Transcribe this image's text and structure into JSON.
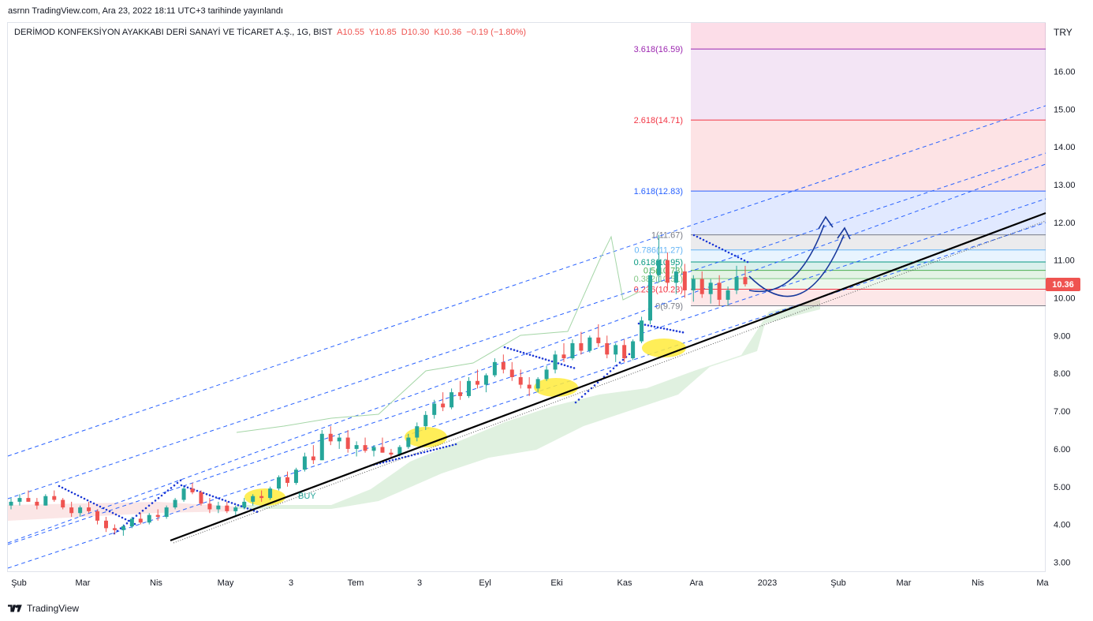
{
  "header": {
    "published_line": "asrnn TradingView.com, Ara 23, 2022 18:11 UTC+3 tarihinde yayınlandı"
  },
  "legend": {
    "symbol": "DERİMOD KONFEKSİYON AYAKKABI DERİ SANAYİ VE TİCARET A.Ş., 1G, BIST",
    "open": "A10.55",
    "high": "Y10.85",
    "low": "D10.30",
    "close": "K10.36",
    "change": "−0.19 (−1.80%)"
  },
  "footer": {
    "brand": "TradingView"
  },
  "colors": {
    "up": "#26a69a",
    "down": "#ef5350",
    "trendline": "#000000",
    "channel": "#2962ff",
    "psar": "#1e3ad6",
    "cloud": "#a5d6a7",
    "highlight": "#ffeb3b",
    "arrow": "#1a3a9c"
  },
  "chart_data": {
    "type": "candlestick",
    "currency": "TRY",
    "last_price": "10.36",
    "ylim": [
      2.7,
      17.5
    ],
    "y_ticks": [
      "3.00",
      "4.00",
      "5.00",
      "6.00",
      "7.00",
      "8.00",
      "9.00",
      "10.00",
      "11.00",
      "12.00",
      "13.00",
      "14.00",
      "15.00",
      "16.00"
    ],
    "x_ticks": [
      "Şub",
      "Mar",
      "Nis",
      "May",
      "3",
      "Tem",
      "3",
      "Eyl",
      "Eki",
      "Kas",
      "Ara",
      "2023",
      "Şub",
      "Mar",
      "Nis",
      "Ma"
    ],
    "buy_label": "BUY",
    "fib_levels": [
      {
        "label": "0(9.79)",
        "ratio": 0,
        "value": 9.79,
        "color": "#787b86"
      },
      {
        "label": "0.236(10.23)",
        "ratio": 0.236,
        "value": 10.23,
        "color": "#f23645"
      },
      {
        "label": "0.382(10.51)",
        "ratio": 0.382,
        "value": 10.51,
        "color": "#81c784"
      },
      {
        "label": "0.5(10.73)",
        "ratio": 0.5,
        "value": 10.73,
        "color": "#4caf50"
      },
      {
        "label": "0.618(10.95)",
        "ratio": 0.618,
        "value": 10.95,
        "color": "#089981"
      },
      {
        "label": "0.786(11.27)",
        "ratio": 0.786,
        "value": 11.27,
        "color": "#64b5f6"
      },
      {
        "label": "1(11.67)",
        "ratio": 1,
        "value": 11.67,
        "color": "#787b86"
      },
      {
        "label": "1.618(12.83)",
        "ratio": 1.618,
        "value": 12.83,
        "color": "#2962ff"
      },
      {
        "label": "2.618(14.71)",
        "ratio": 2.618,
        "value": 14.71,
        "color": "#f23645"
      },
      {
        "label": "3.618(16.59)",
        "ratio": 3.618,
        "value": 16.59,
        "color": "#9c27b0"
      }
    ],
    "fib_band_colors": [
      "rgba(242,54,69,0.12)",
      "rgba(129,199,132,0.15)",
      "rgba(76,175,80,0.15)",
      "rgba(8,153,129,0.15)",
      "rgba(100,181,246,0.15)",
      "rgba(120,123,134,0.15)",
      "rgba(41,98,255,0.14)",
      "rgba(242,54,69,0.14)",
      "rgba(156,39,176,0.12)",
      "rgba(233,30,99,0.15)"
    ],
    "candles_ohlc": [
      [
        4.5,
        4.7,
        4.4,
        4.6
      ],
      [
        4.6,
        4.8,
        4.5,
        4.7
      ],
      [
        4.7,
        4.9,
        4.6,
        4.6
      ],
      [
        4.6,
        4.7,
        4.4,
        4.5
      ],
      [
        4.5,
        4.8,
        4.5,
        4.75
      ],
      [
        4.75,
        4.9,
        4.6,
        4.65
      ],
      [
        4.65,
        4.7,
        4.4,
        4.45
      ],
      [
        4.45,
        4.6,
        4.2,
        4.3
      ],
      [
        4.3,
        4.5,
        4.2,
        4.45
      ],
      [
        4.45,
        4.6,
        4.3,
        4.35
      ],
      [
        4.35,
        4.4,
        4.0,
        4.1
      ],
      [
        4.1,
        4.2,
        3.8,
        3.9
      ],
      [
        3.9,
        4.0,
        3.75,
        3.85
      ],
      [
        3.85,
        4.0,
        3.7,
        3.95
      ],
      [
        3.95,
        4.2,
        3.9,
        4.15
      ],
      [
        4.15,
        4.3,
        4.0,
        4.05
      ],
      [
        4.05,
        4.3,
        4.0,
        4.25
      ],
      [
        4.25,
        4.4,
        4.1,
        4.2
      ],
      [
        4.2,
        4.5,
        4.15,
        4.45
      ],
      [
        4.45,
        4.7,
        4.4,
        4.65
      ],
      [
        4.65,
        5.0,
        4.6,
        4.95
      ],
      [
        4.95,
        5.1,
        4.8,
        4.85
      ],
      [
        4.85,
        4.9,
        4.5,
        4.55
      ],
      [
        4.55,
        4.7,
        4.3,
        4.4
      ],
      [
        4.4,
        4.6,
        4.3,
        4.5
      ],
      [
        4.5,
        4.6,
        4.3,
        4.35
      ],
      [
        4.35,
        4.5,
        4.2,
        4.45
      ],
      [
        4.45,
        4.7,
        4.4,
        4.6
      ],
      [
        4.6,
        4.8,
        4.5,
        4.75
      ],
      [
        4.75,
        4.9,
        4.6,
        4.7
      ],
      [
        4.7,
        5.0,
        4.65,
        4.95
      ],
      [
        4.95,
        5.3,
        4.9,
        5.25
      ],
      [
        5.25,
        5.4,
        5.0,
        5.1
      ],
      [
        5.1,
        5.5,
        5.05,
        5.45
      ],
      [
        5.45,
        5.9,
        5.4,
        5.8
      ],
      [
        5.8,
        6.1,
        5.6,
        5.7
      ],
      [
        5.7,
        6.5,
        5.7,
        6.4
      ],
      [
        6.4,
        6.6,
        6.1,
        6.2
      ],
      [
        6.2,
        6.4,
        6.0,
        6.3
      ],
      [
        6.3,
        6.5,
        5.9,
        6.0
      ],
      [
        6.0,
        6.2,
        5.8,
        6.1
      ],
      [
        6.1,
        6.3,
        5.9,
        5.95
      ],
      [
        5.95,
        6.1,
        5.8,
        6.05
      ],
      [
        6.05,
        6.3,
        5.9,
        5.9
      ],
      [
        5.9,
        6.0,
        5.75,
        5.85
      ],
      [
        5.85,
        6.1,
        5.8,
        6.05
      ],
      [
        6.05,
        6.4,
        6.0,
        6.3
      ],
      [
        6.3,
        6.7,
        6.2,
        6.6
      ],
      [
        6.6,
        7.0,
        6.5,
        6.9
      ],
      [
        6.9,
        7.3,
        6.8,
        7.2
      ],
      [
        7.2,
        7.5,
        7.0,
        7.1
      ],
      [
        7.1,
        7.6,
        7.05,
        7.5
      ],
      [
        7.5,
        7.8,
        7.3,
        7.4
      ],
      [
        7.4,
        7.9,
        7.35,
        7.8
      ],
      [
        7.8,
        8.1,
        7.6,
        7.7
      ],
      [
        7.7,
        8.0,
        7.5,
        7.95
      ],
      [
        7.95,
        8.4,
        7.9,
        8.3
      ],
      [
        8.3,
        8.5,
        8.0,
        8.1
      ],
      [
        8.1,
        8.3,
        7.8,
        7.9
      ],
      [
        7.9,
        8.1,
        7.6,
        7.7
      ],
      [
        7.7,
        7.9,
        7.4,
        7.6
      ],
      [
        7.6,
        7.9,
        7.5,
        7.85
      ],
      [
        7.85,
        8.2,
        7.8,
        8.1
      ],
      [
        8.1,
        8.6,
        8.0,
        8.5
      ],
      [
        8.5,
        8.8,
        8.3,
        8.4
      ],
      [
        8.4,
        8.9,
        8.35,
        8.8
      ],
      [
        8.8,
        9.1,
        8.5,
        8.6
      ],
      [
        8.6,
        9.0,
        8.55,
        8.95
      ],
      [
        8.95,
        9.3,
        8.7,
        8.8
      ],
      [
        8.8,
        9.0,
        8.4,
        8.5
      ],
      [
        8.5,
        8.8,
        8.3,
        8.75
      ],
      [
        8.75,
        8.9,
        8.3,
        8.4
      ],
      [
        8.4,
        8.9,
        8.35,
        8.85
      ],
      [
        8.85,
        9.5,
        8.8,
        9.4
      ],
      [
        9.4,
        10.8,
        9.3,
        10.6
      ],
      [
        10.6,
        11.67,
        10.4,
        11.0
      ],
      [
        11.0,
        11.2,
        10.2,
        10.4
      ],
      [
        10.4,
        10.9,
        10.1,
        10.7
      ],
      [
        10.7,
        10.9,
        10.0,
        10.2
      ],
      [
        10.2,
        10.6,
        9.9,
        10.5
      ],
      [
        10.5,
        10.7,
        10.0,
        10.1
      ],
      [
        10.1,
        10.5,
        9.85,
        10.4
      ],
      [
        10.4,
        10.6,
        9.8,
        9.95
      ],
      [
        9.95,
        10.3,
        9.8,
        10.2
      ],
      [
        10.2,
        10.85,
        10.1,
        10.55
      ],
      [
        10.55,
        10.85,
        10.3,
        10.36
      ]
    ]
  }
}
